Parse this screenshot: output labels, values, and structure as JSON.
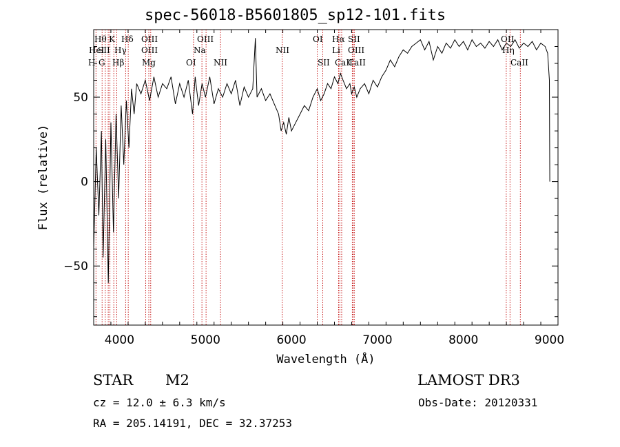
{
  "chart_data": {
    "type": "line",
    "title": "spec-56018-B5601805_sp12-101.fits",
    "xlabel": "Wavelength (Å)",
    "ylabel": "Flux (relative)",
    "xlim": [
      3700,
      9100
    ],
    "ylim": [
      -85,
      90
    ],
    "x_ticks": [
      4000,
      5000,
      6000,
      7000,
      8000,
      9000
    ],
    "y_ticks": [
      -50,
      0,
      50
    ],
    "series": [
      {
        "name": "flux",
        "x": [
          3700,
          3730,
          3760,
          3790,
          3810,
          3840,
          3870,
          3900,
          3930,
          3960,
          3990,
          4020,
          4050,
          4080,
          4110,
          4140,
          4170,
          4200,
          4250,
          4300,
          4350,
          4400,
          4450,
          4500,
          4550,
          4600,
          4650,
          4700,
          4750,
          4800,
          4850,
          4880,
          4920,
          4960,
          5000,
          5050,
          5100,
          5150,
          5200,
          5250,
          5300,
          5350,
          5400,
          5450,
          5500,
          5550,
          5580,
          5600,
          5650,
          5700,
          5750,
          5800,
          5850,
          5880,
          5910,
          5940,
          5970,
          6000,
          6050,
          6100,
          6150,
          6200,
          6250,
          6300,
          6340,
          6380,
          6420,
          6460,
          6500,
          6540,
          6570,
          6600,
          6640,
          6680,
          6700,
          6730,
          6760,
          6800,
          6850,
          6900,
          6950,
          7000,
          7050,
          7100,
          7150,
          7200,
          7250,
          7300,
          7350,
          7400,
          7450,
          7500,
          7550,
          7600,
          7650,
          7700,
          7750,
          7800,
          7850,
          7900,
          7950,
          8000,
          8050,
          8100,
          8150,
          8200,
          8250,
          8300,
          8350,
          8400,
          8450,
          8500,
          8550,
          8600,
          8650,
          8700,
          8750,
          8800,
          8850,
          8900,
          8950,
          8980,
          9000,
          9005
        ],
        "y": [
          -40,
          20,
          -20,
          30,
          -45,
          25,
          -60,
          35,
          -30,
          40,
          -10,
          45,
          10,
          48,
          20,
          55,
          40,
          58,
          52,
          60,
          48,
          62,
          50,
          58,
          55,
          62,
          46,
          58,
          50,
          60,
          40,
          62,
          45,
          58,
          50,
          62,
          46,
          55,
          50,
          58,
          52,
          60,
          45,
          56,
          50,
          55,
          85,
          50,
          55,
          48,
          52,
          46,
          40,
          30,
          35,
          28,
          38,
          30,
          35,
          40,
          45,
          42,
          50,
          55,
          48,
          52,
          58,
          55,
          62,
          58,
          64,
          60,
          55,
          58,
          52,
          56,
          50,
          55,
          58,
          52,
          60,
          56,
          62,
          66,
          72,
          68,
          74,
          78,
          76,
          80,
          82,
          84,
          78,
          83,
          72,
          80,
          76,
          82,
          79,
          84,
          80,
          83,
          78,
          84,
          80,
          82,
          79,
          83,
          80,
          84,
          78,
          82,
          80,
          84,
          79,
          82,
          80,
          83,
          78,
          82,
          80,
          76,
          60,
          0
        ]
      }
    ],
    "line_markers": [
      {
        "label": "Hθ",
        "wave": 3798
      },
      {
        "label": "OII",
        "wave": 3727
      },
      {
        "label": "OIII",
        "wave": 3869
      },
      {
        "label": "Hη",
        "wave": 3835
      },
      {
        "label": "HeI",
        "wave": 3889
      },
      {
        "label": "K",
        "wave": 3934
      },
      {
        "label": "H",
        "wave": 3968
      },
      {
        "label": "SII",
        "wave": 4072
      },
      {
        "label": "Hδ",
        "wave": 4102
      },
      {
        "label": "OIII",
        "wave": 4363
      },
      {
        "label": "Hγ",
        "wave": 4341
      },
      {
        "label": "G",
        "wave": 4305
      },
      {
        "label": "Hβ",
        "wave": 4861
      },
      {
        "label": "OIII",
        "wave": 4959
      },
      {
        "label": "OIII",
        "wave": 5007
      },
      {
        "label": "Mg",
        "wave": 5175
      },
      {
        "label": "Na",
        "wave": 5893
      },
      {
        "label": "OI",
        "wave": 6300
      },
      {
        "label": "OI",
        "wave": 6364
      },
      {
        "label": "Hα",
        "wave": 6563
      },
      {
        "label": "NII",
        "wave": 6548
      },
      {
        "label": "NII",
        "wave": 6584
      },
      {
        "label": "SII",
        "wave": 6717
      },
      {
        "label": "SII",
        "wave": 6731
      },
      {
        "label": "Li",
        "wave": 6708
      },
      {
        "label": "CaII",
        "wave": 8498
      },
      {
        "label": "CaII",
        "wave": 8542
      },
      {
        "label": "CaII",
        "wave": 8662
      }
    ],
    "line_label_text": [
      "Hθ",
      "K",
      "Hδ",
      "OIII",
      "OIII",
      "OI",
      "Hα",
      "SII",
      "OII",
      "HeI",
      "SII",
      "Hγ",
      "OIII",
      "Na",
      "NII",
      "Li",
      "OIII",
      "Hη",
      "H",
      "G",
      "Hβ",
      "Mg",
      "OI",
      "NII",
      "SII",
      "CaII",
      "CaII",
      "CaII"
    ],
    "colors": {
      "marker": "#c81e1e",
      "spectrum": "#000000",
      "axes": "#000000"
    }
  },
  "info": {
    "class_label": "STAR",
    "subclass": "M2",
    "survey": "LAMOST DR3",
    "cz": "cz = 12.0 ± 6.3 km/s",
    "obs_date": "Obs-Date: 20120331",
    "coords": "RA = 205.14191, DEC =  32.37253"
  }
}
